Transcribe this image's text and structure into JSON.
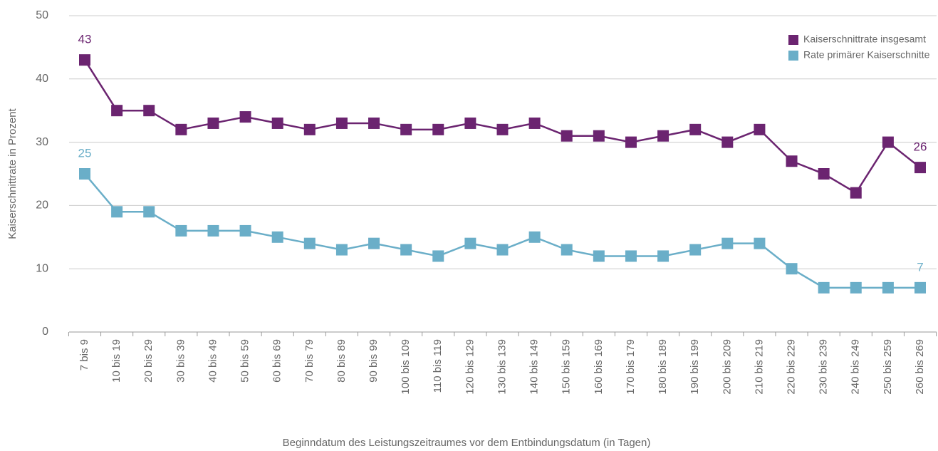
{
  "chart_data": {
    "type": "line",
    "x_label": "Beginndatum des Leistungszeitraumes vor dem Entbindungsdatum (in Tagen)",
    "y_label": "Kaiserschnittrate in Prozent",
    "categories": [
      "7 bis 9",
      "10 bis 19",
      "20 bis 29",
      "30 bis 39",
      "40 bis 49",
      "50 bis 59",
      "60 bis 69",
      "70 bis 79",
      "80 bis 89",
      "90 bis 99",
      "100 bis 109",
      "110 bis 119",
      "120 bis 129",
      "130 bis 139",
      "140 bis 149",
      "150 bis 159",
      "160 bis 169",
      "170 bis 179",
      "180 bis 189",
      "190 bis 199",
      "200 bis 209",
      "210 bis 219",
      "220 bis 229",
      "230 bis 239",
      "240 bis 249",
      "250 bis 259",
      "260 bis 269"
    ],
    "series": [
      {
        "name": "Kaiserschnittrate insgesamt",
        "color": "#6b2470",
        "values": [
          43,
          35,
          35,
          32,
          33,
          34,
          33,
          32,
          33,
          33,
          32,
          32,
          33,
          32,
          33,
          31,
          31,
          30,
          31,
          32,
          30,
          32,
          27,
          25,
          22,
          30,
          26
        ],
        "value_labels": [
          "43",
          null,
          null,
          null,
          null,
          null,
          null,
          null,
          null,
          null,
          null,
          null,
          null,
          null,
          null,
          null,
          null,
          null,
          null,
          null,
          null,
          null,
          null,
          null,
          null,
          null,
          "26"
        ]
      },
      {
        "name": "Rate primärer Kaiserschnitte",
        "color": "#6aaec8",
        "values": [
          25,
          19,
          19,
          16,
          16,
          16,
          15,
          14,
          13,
          14,
          13,
          12,
          14,
          13,
          15,
          13,
          12,
          12,
          12,
          13,
          14,
          14,
          10,
          7,
          7,
          7,
          7
        ],
        "value_labels": [
          "25",
          null,
          null,
          null,
          null,
          null,
          null,
          null,
          null,
          null,
          null,
          null,
          null,
          null,
          null,
          null,
          null,
          null,
          null,
          null,
          null,
          null,
          null,
          null,
          null,
          null,
          "7"
        ]
      }
    ],
    "ylim": [
      0,
      50
    ],
    "yticks": [
      0,
      10,
      20,
      30,
      40,
      50
    ],
    "grid": true,
    "legend": "top-right"
  }
}
